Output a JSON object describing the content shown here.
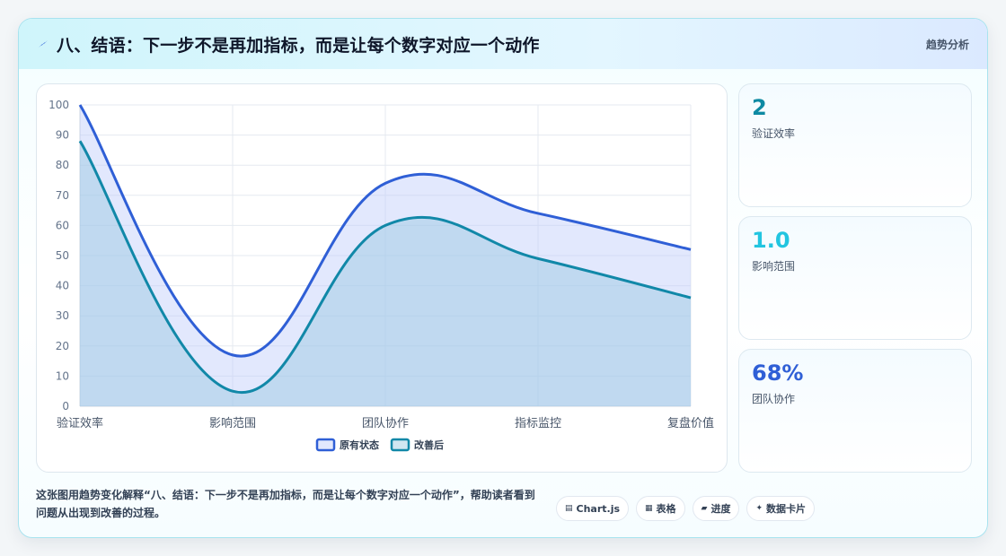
{
  "header": {
    "title": "八、结语：下一步不是再加指标，而是让每个数字对应一个动作",
    "tag": "趋势分析",
    "icon": "bolt-icon"
  },
  "chart_data": {
    "type": "area",
    "categories": [
      "验证效率",
      "影响范围",
      "团队协作",
      "指标监控",
      "复盘价值"
    ],
    "series": [
      {
        "name": "原有状态",
        "values": [
          100,
          17,
          74,
          64,
          52
        ],
        "color": "#2f5fd6",
        "fill": "rgba(190,205,250,0.45)"
      },
      {
        "name": "改善后",
        "values": [
          88,
          5,
          60,
          49,
          36
        ],
        "color": "#1188a8",
        "fill": "rgba(150,200,225,0.45)"
      }
    ],
    "ylim": [
      0,
      100
    ],
    "yticks": [
      0,
      10,
      20,
      30,
      40,
      50,
      60,
      70,
      80,
      90,
      100
    ],
    "grid": true,
    "legend": "bottom"
  },
  "stats": [
    {
      "value": "2",
      "label": "验证效率",
      "color": "#0e8aa3"
    },
    {
      "value": "1.0",
      "label": "影响范围",
      "color": "#22c5e0"
    },
    {
      "value": "68%",
      "label": "团队协作",
      "color": "#2f5fd6"
    }
  ],
  "description": "这张图用趋势变化解释“八、结语：下一步不是再加指标，而是让每个数字对应一个动作”，帮助读者看到问题从出现到改善的过程。",
  "chips": [
    {
      "icon": "▤",
      "label": "Chart.js"
    },
    {
      "icon": "▦",
      "label": "表格"
    },
    {
      "icon": "▰",
      "label": "进度"
    },
    {
      "icon": "✦",
      "label": "数据卡片"
    }
  ]
}
